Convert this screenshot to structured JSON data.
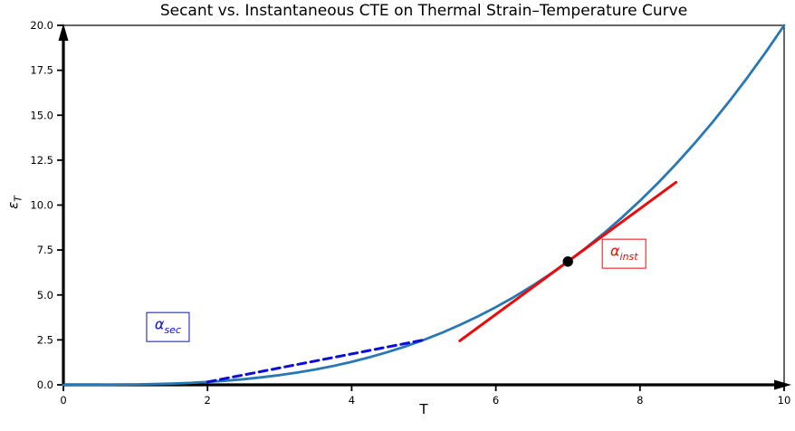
{
  "chart_data": {
    "type": "line",
    "title": "Secant vs. Instantaneous CTE on Thermal Strain–Temperature Curve",
    "xlabel": "T",
    "ylabel": "ε_T",
    "ylabel_symbol": "ε",
    "ylabel_subscript": "T",
    "xlim": [
      0,
      10
    ],
    "ylim": [
      0,
      20
    ],
    "grid": false,
    "legend": "none",
    "axis_color": "#000000",
    "xticks": [
      {
        "v": 0,
        "label": "0"
      },
      {
        "v": 2,
        "label": "2"
      },
      {
        "v": 4,
        "label": "4"
      },
      {
        "v": 6,
        "label": "6"
      },
      {
        "v": 8,
        "label": "8"
      },
      {
        "v": 10,
        "label": "10"
      }
    ],
    "yticks": [
      {
        "v": 0.0,
        "label": "0.0"
      },
      {
        "v": 2.5,
        "label": "2.5"
      },
      {
        "v": 5.0,
        "label": "5.0"
      },
      {
        "v": 7.5,
        "label": "7.5"
      },
      {
        "v": 10.0,
        "label": "10.0"
      },
      {
        "v": 12.5,
        "label": "12.5"
      },
      {
        "v": 15.0,
        "label": "15.0"
      },
      {
        "v": 17.5,
        "label": "17.5"
      },
      {
        "v": 20.0,
        "label": "20.0"
      }
    ],
    "series": [
      {
        "name": "thermal-strain-curve",
        "formula": "epsilon_T = 0.02*T^3",
        "color": "#2878b5",
        "style": "solid",
        "width": 2.8,
        "x": [
          0,
          0.25,
          0.5,
          0.75,
          1,
          1.25,
          1.5,
          1.75,
          2,
          2.25,
          2.5,
          2.75,
          3,
          3.25,
          3.5,
          3.75,
          4,
          4.25,
          4.5,
          4.75,
          5,
          5.25,
          5.5,
          5.75,
          6,
          6.25,
          6.5,
          6.75,
          7,
          7.25,
          7.5,
          7.75,
          8,
          8.25,
          8.5,
          8.75,
          9,
          9.25,
          9.5,
          9.75,
          10
        ],
        "y": [
          0,
          0.0003,
          0.0025,
          0.0084,
          0.02,
          0.0391,
          0.0675,
          0.1072,
          0.16,
          0.2278,
          0.3125,
          0.4159,
          0.54,
          0.6866,
          0.8575,
          1.0547,
          1.28,
          1.5353,
          1.8225,
          2.1434,
          2.5,
          2.8941,
          3.3275,
          3.8022,
          4.32,
          4.8828,
          5.4925,
          6.1509,
          6.86,
          7.6212,
          8.4375,
          9.3107,
          10.24,
          11.2277,
          12.2825,
          13.3984,
          14.58,
          15.8303,
          17.1475,
          18.5344,
          20
        ]
      },
      {
        "name": "secant-line",
        "color": "#0d0dd8",
        "style": "dashed",
        "width": 3,
        "x": [
          2,
          5
        ],
        "y": [
          0.16,
          2.5
        ]
      },
      {
        "name": "tangent-line",
        "color": "#ea0b0b",
        "style": "solid",
        "width": 3,
        "x": [
          5.5,
          8.5
        ],
        "y": [
          2.45,
          11.27
        ]
      }
    ],
    "marker_point": {
      "x": 7,
      "y": 6.86,
      "color": "#000000",
      "radius": 5.7
    },
    "annotations": [
      {
        "symbol": "α",
        "subscript": "sec",
        "color": "#0d0dd8",
        "x": 1.45,
        "y": 3.2
      },
      {
        "symbol": "α",
        "subscript": "inst",
        "color": "#ea0b0b",
        "x": 7.78,
        "y": 7.3
      }
    ]
  }
}
